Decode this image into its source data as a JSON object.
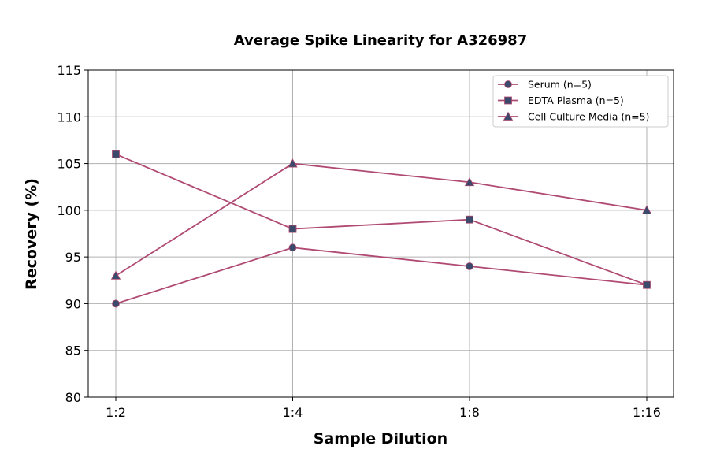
{
  "chart_data": {
    "type": "line",
    "title": "Average Spike Linearity for A326987",
    "xlabel": "Sample Dilution",
    "ylabel": "Recovery (%)",
    "categories": [
      "1:2",
      "1:4",
      "1:8",
      "1:16"
    ],
    "ylim": [
      80,
      115
    ],
    "yticks": [
      80,
      85,
      90,
      95,
      100,
      105,
      110,
      115
    ],
    "grid": true,
    "legend_position": "top-right",
    "colors": {
      "line": "#b04a72",
      "marker": "#3b4a6b"
    },
    "series": [
      {
        "name": "Serum (n=5)",
        "marker": "circle",
        "values": [
          90,
          96,
          94,
          92
        ]
      },
      {
        "name": "EDTA Plasma (n=5)",
        "marker": "square",
        "values": [
          106,
          98,
          99,
          92
        ]
      },
      {
        "name": "Cell Culture Media (n=5)",
        "marker": "triangle",
        "values": [
          93,
          105,
          103,
          100
        ]
      }
    ]
  }
}
